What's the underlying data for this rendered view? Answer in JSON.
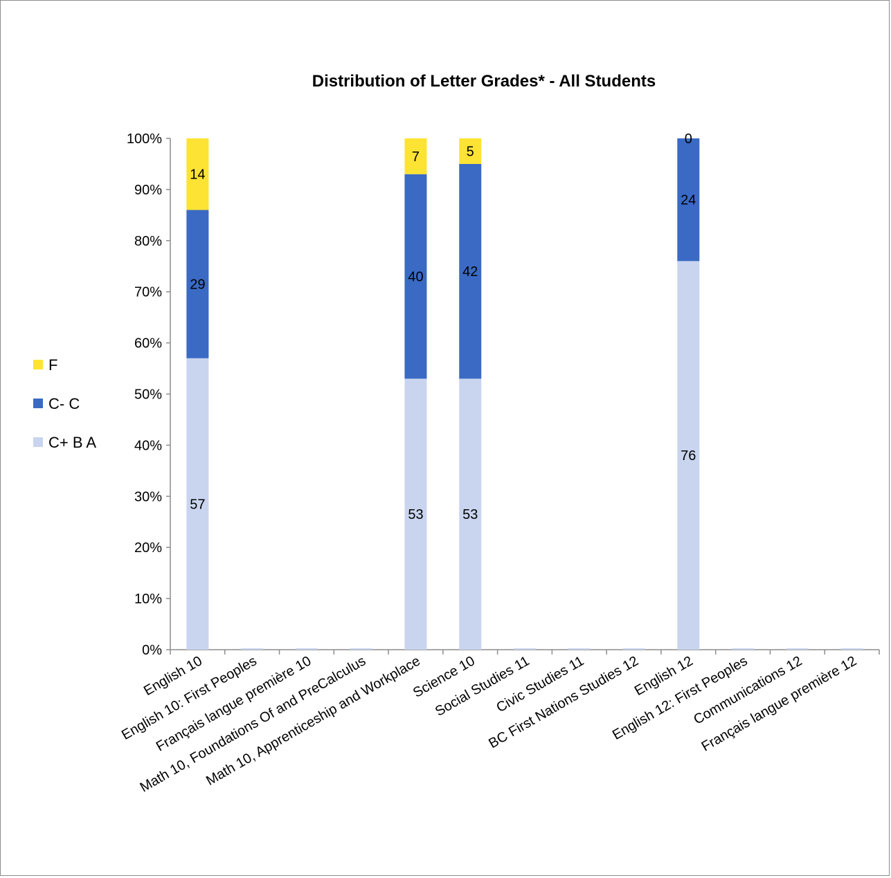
{
  "chart_data": {
    "type": "bar",
    "stacked": true,
    "title": "Distribution of Letter Grades* - All Students",
    "xlabel": "",
    "ylabel": "",
    "ylim": [
      0,
      100
    ],
    "y_ticks": [
      "0%",
      "10%",
      "20%",
      "30%",
      "40%",
      "50%",
      "60%",
      "70%",
      "80%",
      "90%",
      "100%"
    ],
    "grid": false,
    "legend_position": "left",
    "categories": [
      "English 10",
      "English 10: First Peoples",
      "Français langue première 10",
      "Math 10, Foundations Of and PreCalculus",
      "Math 10, Apprenticeship and Workplace",
      "Science 10",
      "Social Studies 11",
      "Civic Studies 11",
      "BC First Nations Studies 12",
      "English 12",
      "English 12: First Peoples",
      "Communications 12",
      "Français langue première 12"
    ],
    "series": [
      {
        "name": "C+ B A",
        "color": "#c9d5ef",
        "values": [
          57,
          0,
          0,
          0,
          53,
          53,
          0,
          0,
          0,
          76,
          0,
          0,
          0
        ]
      },
      {
        "name": "C- C",
        "color": "#3a6ac4",
        "values": [
          29,
          0,
          0,
          0,
          40,
          42,
          0,
          0,
          0,
          24,
          0,
          0,
          0
        ]
      },
      {
        "name": "F",
        "color": "#fde333",
        "values": [
          14,
          0,
          0,
          0,
          7,
          5,
          0,
          0,
          0,
          0,
          0,
          0,
          0
        ]
      }
    ],
    "data_labels": [
      [
        "57",
        "",
        "",
        "",
        "53",
        "53",
        "",
        "",
        "",
        "76",
        "",
        "",
        ""
      ],
      [
        "29",
        "",
        "",
        "",
        "40",
        "42",
        "",
        "",
        "",
        "24",
        "",
        "",
        ""
      ],
      [
        "14",
        "",
        "",
        "",
        "7",
        "5",
        "",
        "",
        "",
        "0",
        "",
        "",
        ""
      ]
    ],
    "legend_order": [
      "F",
      "C- C",
      "C+ B A"
    ]
  }
}
